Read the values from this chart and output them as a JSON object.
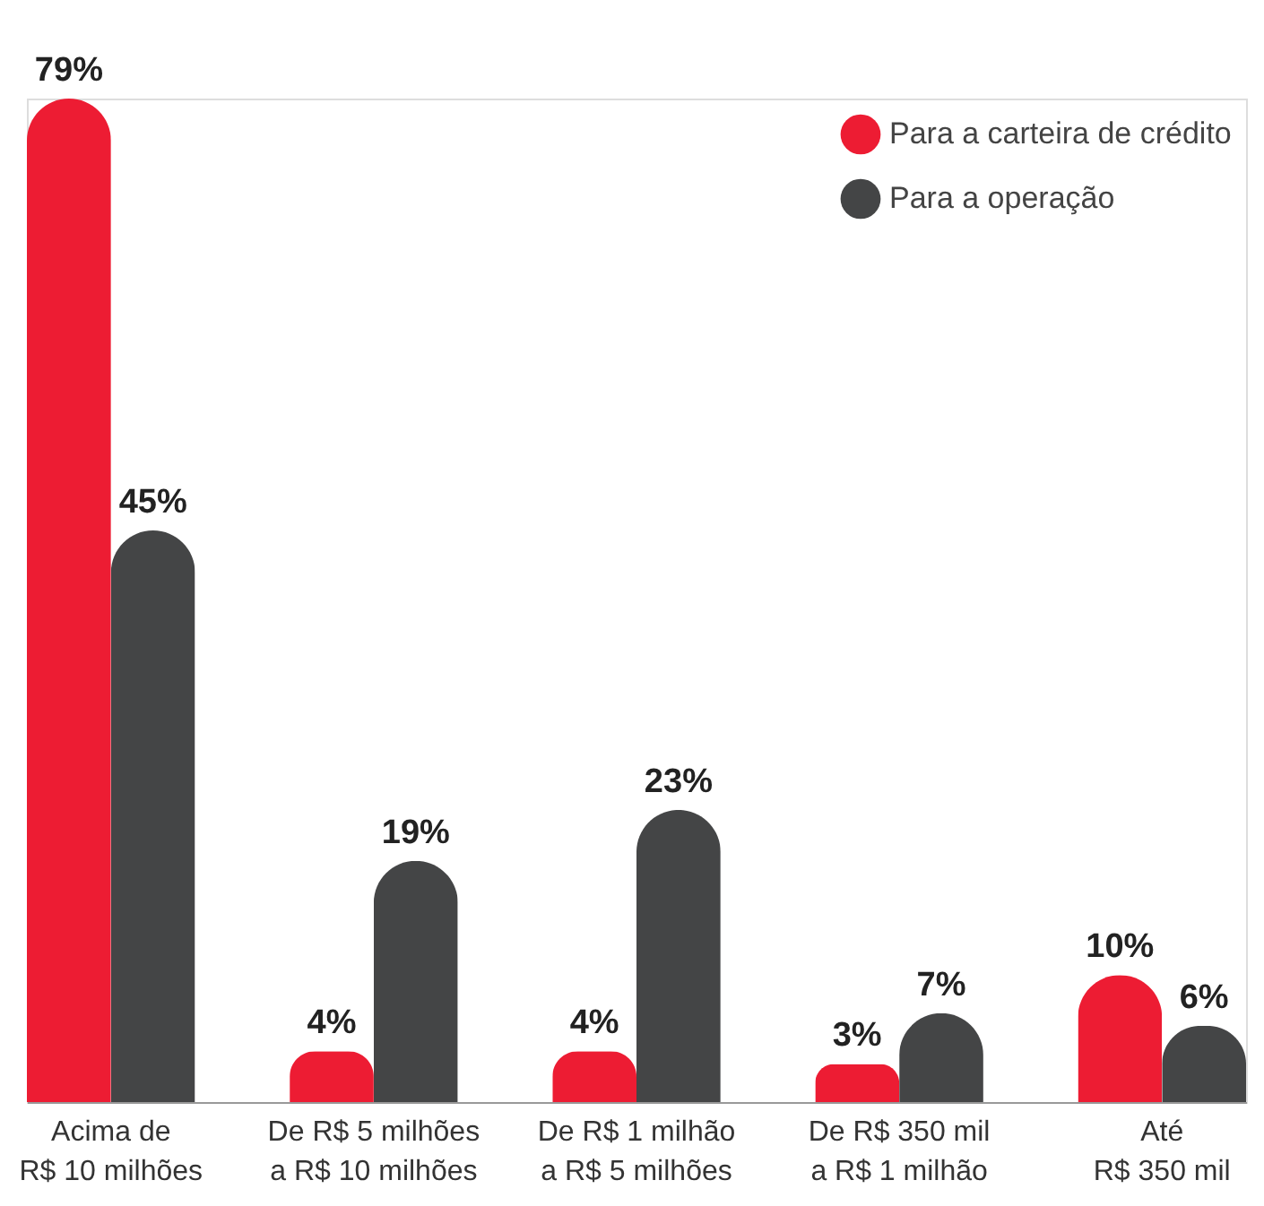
{
  "chart_data": {
    "type": "bar",
    "categories": [
      "Acima de\nR$ 10 milhões",
      "De R$ 5 milhões\na R$ 10 milhões",
      "De R$ 1 milhão\na R$ 5 milhões",
      "De R$ 350 mil\na R$ 1 milhão",
      "Até\nR$ 350 mil"
    ],
    "series": [
      {
        "name": "Para a carteira de crédito",
        "color": "#ed1c33",
        "values": [
          79,
          4,
          4,
          3,
          10
        ],
        "value_labels": [
          "79%",
          "4%",
          "4%",
          "3%",
          "10%"
        ]
      },
      {
        "name": "Para a operação",
        "color": "#444546",
        "values": [
          45,
          19,
          23,
          7,
          6
        ],
        "value_labels": [
          "45%",
          "19%",
          "23%",
          "7%",
          "6%"
        ]
      }
    ],
    "legend": "top right",
    "grid": false
  }
}
